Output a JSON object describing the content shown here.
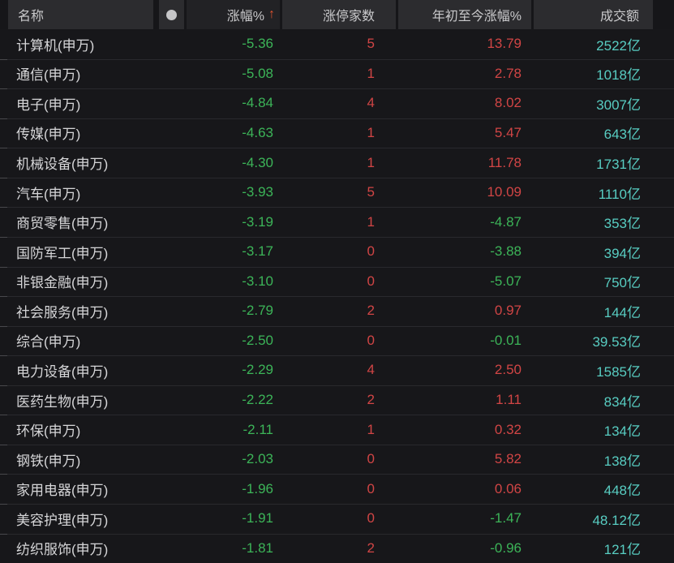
{
  "colors": {
    "up_red": "#d14545",
    "down_green": "#3cb458",
    "turnover_teal": "#58cdc2",
    "sort_arrow_orange": "#e2532f",
    "header_bg": "#2c2c2f",
    "row_bg": "#17171a"
  },
  "icons": {
    "sort_ascending": "↑",
    "header_dot": "circle"
  },
  "table": {
    "header": {
      "name": "名称",
      "change": "涨幅%",
      "sort_arrow": "↑",
      "limit_up": "涨停家数",
      "ytd": "年初至今涨幅%",
      "turnover": "成交额"
    },
    "rows": [
      {
        "name": "计算机(申万)",
        "change": "-5.36",
        "limit": "5",
        "ytd": "13.79",
        "turnover": "2522亿"
      },
      {
        "name": "通信(申万)",
        "change": "-5.08",
        "limit": "1",
        "ytd": "2.78",
        "turnover": "1018亿"
      },
      {
        "name": "电子(申万)",
        "change": "-4.84",
        "limit": "4",
        "ytd": "8.02",
        "turnover": "3007亿"
      },
      {
        "name": "传媒(申万)",
        "change": "-4.63",
        "limit": "1",
        "ytd": "5.47",
        "turnover": "643亿"
      },
      {
        "name": "机械设备(申万)",
        "change": "-4.30",
        "limit": "1",
        "ytd": "11.78",
        "turnover": "1731亿"
      },
      {
        "name": "汽车(申万)",
        "change": "-3.93",
        "limit": "5",
        "ytd": "10.09",
        "turnover": "1110亿"
      },
      {
        "name": "商贸零售(申万)",
        "change": "-3.19",
        "limit": "1",
        "ytd": "-4.87",
        "turnover": "353亿"
      },
      {
        "name": "国防军工(申万)",
        "change": "-3.17",
        "limit": "0",
        "ytd": "-3.88",
        "turnover": "394亿"
      },
      {
        "name": "非银金融(申万)",
        "change": "-3.10",
        "limit": "0",
        "ytd": "-5.07",
        "turnover": "750亿"
      },
      {
        "name": "社会服务(申万)",
        "change": "-2.79",
        "limit": "2",
        "ytd": "0.97",
        "turnover": "144亿"
      },
      {
        "name": "综合(申万)",
        "change": "-2.50",
        "limit": "0",
        "ytd": "-0.01",
        "turnover": "39.53亿"
      },
      {
        "name": "电力设备(申万)",
        "change": "-2.29",
        "limit": "4",
        "ytd": "2.50",
        "turnover": "1585亿"
      },
      {
        "name": "医药生物(申万)",
        "change": "-2.22",
        "limit": "2",
        "ytd": "1.11",
        "turnover": "834亿"
      },
      {
        "name": "环保(申万)",
        "change": "-2.11",
        "limit": "1",
        "ytd": "0.32",
        "turnover": "134亿"
      },
      {
        "name": "钢铁(申万)",
        "change": "-2.03",
        "limit": "0",
        "ytd": "5.82",
        "turnover": "138亿"
      },
      {
        "name": "家用电器(申万)",
        "change": "-1.96",
        "limit": "0",
        "ytd": "0.06",
        "turnover": "448亿"
      },
      {
        "name": "美容护理(申万)",
        "change": "-1.91",
        "limit": "0",
        "ytd": "-1.47",
        "turnover": "48.12亿"
      },
      {
        "name": "纺织服饰(申万)",
        "change": "-1.81",
        "limit": "2",
        "ytd": "-0.96",
        "turnover": "121亿"
      }
    ]
  }
}
